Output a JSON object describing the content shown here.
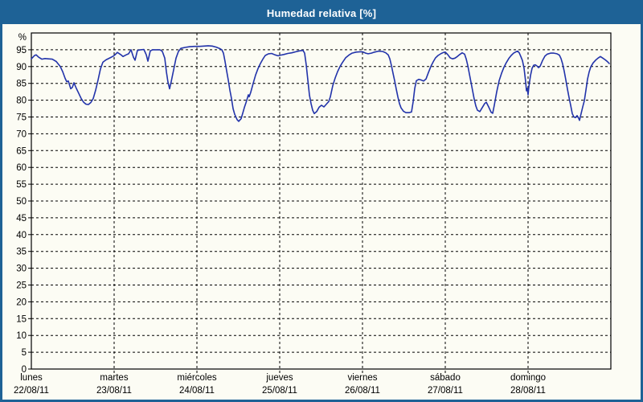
{
  "window": {
    "title": "Humedad relativa [%]"
  },
  "colors": {
    "titlebar_bg": "#1e6296",
    "frame_border": "#1e6296",
    "page_bg": "#fcfcf4",
    "grid": "#000000",
    "axis": "#000000",
    "line": "#2233aa",
    "title_text": "#ffffff",
    "label_text": "#000000"
  },
  "chart_data": {
    "type": "line",
    "title": "Humedad relativa [%]",
    "grid": "dashed",
    "legend": "none",
    "y_axis": {
      "unit_label": "%",
      "ylim": [
        0,
        100
      ],
      "ticks": [
        0,
        5,
        10,
        15,
        20,
        25,
        30,
        35,
        40,
        45,
        50,
        55,
        60,
        65,
        70,
        75,
        80,
        85,
        90,
        95
      ]
    },
    "x_axis": {
      "days": [
        {
          "name": "lunes",
          "date": "22/08/11"
        },
        {
          "name": "martes",
          "date": "23/08/11"
        },
        {
          "name": "miércoles",
          "date": "24/08/11"
        },
        {
          "name": "jueves",
          "date": "25/08/11"
        },
        {
          "name": "viernes",
          "date": "26/08/11"
        },
        {
          "name": "sábado",
          "date": "27/08/11"
        },
        {
          "name": "domingo",
          "date": "28/08/11"
        }
      ],
      "xlim_days": [
        0,
        7
      ]
    },
    "series": [
      {
        "name": "Humedad relativa",
        "color": "#2233aa",
        "points": [
          [
            0.0,
            92.3
          ],
          [
            0.039,
            93.3
          ],
          [
            0.058,
            93.5
          ],
          [
            0.087,
            92.8
          ],
          [
            0.126,
            92.2
          ],
          [
            0.165,
            92.4
          ],
          [
            0.204,
            92.3
          ],
          [
            0.252,
            92.2
          ],
          [
            0.301,
            91.5
          ],
          [
            0.35,
            90.0
          ],
          [
            0.379,
            88.5
          ],
          [
            0.408,
            86.5
          ],
          [
            0.427,
            85.5
          ],
          [
            0.447,
            85.7
          ],
          [
            0.476,
            83.4
          ],
          [
            0.495,
            83.8
          ],
          [
            0.515,
            85.2
          ],
          [
            0.544,
            83.5
          ],
          [
            0.573,
            82.0
          ],
          [
            0.602,
            80.5
          ],
          [
            0.631,
            79.4
          ],
          [
            0.66,
            78.8
          ],
          [
            0.689,
            78.7
          ],
          [
            0.718,
            79.3
          ],
          [
            0.748,
            80.5
          ],
          [
            0.777,
            83.0
          ],
          [
            0.806,
            86.0
          ],
          [
            0.835,
            89.3
          ],
          [
            0.864,
            91.3
          ],
          [
            0.903,
            92.0
          ],
          [
            0.951,
            92.6
          ],
          [
            0.99,
            93.1
          ],
          [
            1.01,
            93.5
          ],
          [
            1.039,
            94.2
          ],
          [
            1.078,
            93.6
          ],
          [
            1.107,
            93.0
          ],
          [
            1.146,
            93.5
          ],
          [
            1.175,
            93.8
          ],
          [
            1.204,
            95.0
          ],
          [
            1.233,
            92.8
          ],
          [
            1.252,
            91.9
          ],
          [
            1.282,
            94.8
          ],
          [
            1.32,
            95.0
          ],
          [
            1.359,
            95.1
          ],
          [
            1.388,
            93.5
          ],
          [
            1.408,
            91.6
          ],
          [
            1.437,
            94.7
          ],
          [
            1.466,
            95.0
          ],
          [
            1.515,
            95.0
          ],
          [
            1.553,
            95.0
          ],
          [
            1.583,
            94.5
          ],
          [
            1.612,
            92.5
          ],
          [
            1.631,
            88.5
          ],
          [
            1.65,
            85.5
          ],
          [
            1.67,
            83.4
          ],
          [
            1.689,
            85.5
          ],
          [
            1.718,
            89.0
          ],
          [
            1.748,
            92.5
          ],
          [
            1.777,
            94.5
          ],
          [
            1.806,
            95.4
          ],
          [
            1.854,
            95.7
          ],
          [
            1.913,
            95.9
          ],
          [
            1.971,
            96.0
          ],
          [
            2.029,
            96.0
          ],
          [
            2.087,
            96.1
          ],
          [
            2.136,
            96.2
          ],
          [
            2.184,
            96.1
          ],
          [
            2.233,
            95.8
          ],
          [
            2.272,
            95.4
          ],
          [
            2.301,
            95.0
          ],
          [
            2.32,
            94.0
          ],
          [
            2.34,
            91.5
          ],
          [
            2.359,
            88.7
          ],
          [
            2.379,
            86.0
          ],
          [
            2.398,
            83.0
          ],
          [
            2.417,
            80.5
          ],
          [
            2.437,
            77.5
          ],
          [
            2.456,
            75.8
          ],
          [
            2.485,
            74.2
          ],
          [
            2.505,
            73.7
          ],
          [
            2.534,
            74.5
          ],
          [
            2.553,
            76.1
          ],
          [
            2.573,
            77.8
          ],
          [
            2.592,
            79.2
          ],
          [
            2.612,
            80.8
          ],
          [
            2.621,
            81.6
          ],
          [
            2.631,
            81.0
          ],
          [
            2.65,
            82.3
          ],
          [
            2.68,
            85.0
          ],
          [
            2.709,
            87.5
          ],
          [
            2.738,
            89.4
          ],
          [
            2.767,
            90.9
          ],
          [
            2.796,
            92.2
          ],
          [
            2.825,
            93.3
          ],
          [
            2.864,
            93.8
          ],
          [
            2.903,
            93.9
          ],
          [
            2.942,
            93.5
          ],
          [
            2.981,
            93.2
          ],
          [
            3.01,
            93.4
          ],
          [
            3.049,
            93.6
          ],
          [
            3.097,
            93.9
          ],
          [
            3.146,
            94.1
          ],
          [
            3.194,
            94.4
          ],
          [
            3.243,
            94.7
          ],
          [
            3.282,
            94.8
          ],
          [
            3.301,
            94.0
          ],
          [
            3.32,
            90.5
          ],
          [
            3.34,
            86.0
          ],
          [
            3.359,
            81.5
          ],
          [
            3.379,
            79.0
          ],
          [
            3.398,
            77.0
          ],
          [
            3.417,
            76.0
          ],
          [
            3.447,
            76.6
          ],
          [
            3.476,
            77.9
          ],
          [
            3.505,
            78.5
          ],
          [
            3.534,
            78.0
          ],
          [
            3.563,
            78.8
          ],
          [
            3.592,
            79.6
          ],
          [
            3.612,
            81.0
          ],
          [
            3.641,
            84.3
          ],
          [
            3.67,
            86.6
          ],
          [
            3.699,
            88.5
          ],
          [
            3.728,
            90.0
          ],
          [
            3.757,
            91.2
          ],
          [
            3.796,
            92.6
          ],
          [
            3.835,
            93.4
          ],
          [
            3.874,
            94.0
          ],
          [
            3.922,
            94.3
          ],
          [
            3.971,
            94.4
          ],
          [
            4.0,
            94.4
          ],
          [
            4.039,
            94.0
          ],
          [
            4.068,
            93.8
          ],
          [
            4.107,
            94.0
          ],
          [
            4.146,
            94.3
          ],
          [
            4.194,
            94.6
          ],
          [
            4.243,
            94.5
          ],
          [
            4.282,
            94.1
          ],
          [
            4.311,
            93.5
          ],
          [
            4.33,
            92.3
          ],
          [
            4.35,
            90.3
          ],
          [
            4.369,
            88.0
          ],
          [
            4.388,
            85.8
          ],
          [
            4.408,
            83.3
          ],
          [
            4.427,
            81.0
          ],
          [
            4.447,
            79.0
          ],
          [
            4.466,
            77.7
          ],
          [
            4.495,
            76.7
          ],
          [
            4.524,
            76.3
          ],
          [
            4.563,
            76.3
          ],
          [
            4.592,
            76.5
          ],
          [
            4.612,
            79.5
          ],
          [
            4.631,
            83.5
          ],
          [
            4.65,
            85.8
          ],
          [
            4.68,
            86.2
          ],
          [
            4.709,
            86.0
          ],
          [
            4.738,
            85.7
          ],
          [
            4.767,
            86.3
          ],
          [
            4.796,
            88.2
          ],
          [
            4.825,
            90.0
          ],
          [
            4.854,
            91.4
          ],
          [
            4.883,
            92.6
          ],
          [
            4.913,
            93.3
          ],
          [
            4.951,
            93.9
          ],
          [
            4.981,
            94.2
          ],
          [
            5.0,
            94.3
          ],
          [
            5.029,
            93.6
          ],
          [
            5.058,
            92.6
          ],
          [
            5.087,
            92.3
          ],
          [
            5.117,
            92.5
          ],
          [
            5.146,
            93.0
          ],
          [
            5.175,
            93.6
          ],
          [
            5.204,
            94.1
          ],
          [
            5.233,
            93.7
          ],
          [
            5.252,
            92.3
          ],
          [
            5.272,
            90.3
          ],
          [
            5.291,
            87.8
          ],
          [
            5.311,
            85.3
          ],
          [
            5.33,
            82.8
          ],
          [
            5.35,
            80.3
          ],
          [
            5.369,
            78.3
          ],
          [
            5.388,
            77.0
          ],
          [
            5.417,
            76.6
          ],
          [
            5.447,
            77.8
          ],
          [
            5.476,
            79.0
          ],
          [
            5.495,
            79.4
          ],
          [
            5.524,
            78.0
          ],
          [
            5.553,
            76.4
          ],
          [
            5.573,
            76.1
          ],
          [
            5.592,
            78.5
          ],
          [
            5.621,
            82.5
          ],
          [
            5.65,
            85.8
          ],
          [
            5.68,
            88.0
          ],
          [
            5.709,
            89.8
          ],
          [
            5.738,
            91.2
          ],
          [
            5.767,
            92.4
          ],
          [
            5.796,
            93.3
          ],
          [
            5.825,
            94.0
          ],
          [
            5.854,
            94.4
          ],
          [
            5.874,
            94.6
          ],
          [
            5.893,
            94.1
          ],
          [
            5.913,
            93.0
          ],
          [
            5.932,
            91.8
          ],
          [
            5.951,
            89.5
          ],
          [
            5.971,
            85.5
          ],
          [
            5.981,
            82.8
          ],
          [
            5.99,
            83.5
          ],
          [
            6.0,
            81.6
          ],
          [
            6.01,
            84.0
          ],
          [
            6.029,
            87.3
          ],
          [
            6.049,
            89.5
          ],
          [
            6.068,
            90.4
          ],
          [
            6.087,
            90.5
          ],
          [
            6.107,
            90.2
          ],
          [
            6.126,
            89.7
          ],
          [
            6.146,
            90.1
          ],
          [
            6.175,
            91.8
          ],
          [
            6.204,
            93.1
          ],
          [
            6.233,
            93.7
          ],
          [
            6.272,
            94.0
          ],
          [
            6.311,
            94.0
          ],
          [
            6.35,
            93.8
          ],
          [
            6.379,
            93.4
          ],
          [
            6.398,
            92.4
          ],
          [
            6.417,
            90.8
          ],
          [
            6.437,
            88.6
          ],
          [
            6.456,
            86.0
          ],
          [
            6.476,
            83.3
          ],
          [
            6.495,
            80.8
          ],
          [
            6.515,
            78.5
          ],
          [
            6.534,
            76.0
          ],
          [
            6.553,
            75.0
          ],
          [
            6.573,
            74.8
          ],
          [
            6.592,
            75.4
          ],
          [
            6.612,
            74.6
          ],
          [
            6.621,
            74.0
          ],
          [
            6.641,
            76.0
          ],
          [
            6.66,
            78.0
          ],
          [
            6.68,
            79.8
          ],
          [
            6.699,
            83.0
          ],
          [
            6.718,
            86.3
          ],
          [
            6.738,
            88.4
          ],
          [
            6.757,
            89.9
          ],
          [
            6.786,
            91.1
          ],
          [
            6.816,
            91.9
          ],
          [
            6.845,
            92.5
          ],
          [
            6.874,
            93.0
          ],
          [
            6.903,
            92.5
          ],
          [
            6.932,
            92.0
          ],
          [
            6.961,
            91.4
          ],
          [
            6.981,
            90.9
          ]
        ]
      }
    ]
  }
}
